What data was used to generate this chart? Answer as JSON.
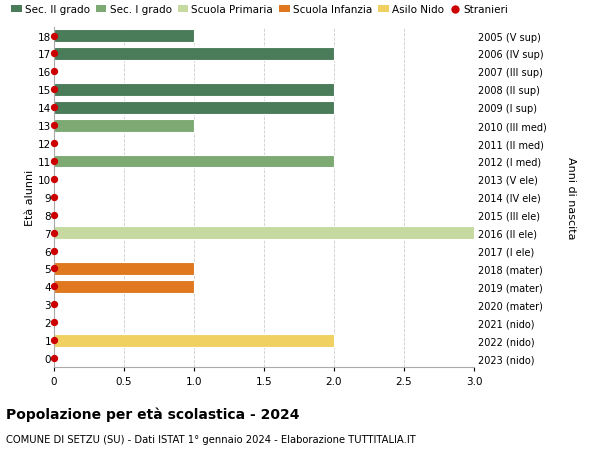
{
  "ages": [
    18,
    17,
    16,
    15,
    14,
    13,
    12,
    11,
    10,
    9,
    8,
    7,
    6,
    5,
    4,
    3,
    2,
    1,
    0
  ],
  "right_labels": [
    "2005 (V sup)",
    "2006 (IV sup)",
    "2007 (III sup)",
    "2008 (II sup)",
    "2009 (I sup)",
    "2010 (III med)",
    "2011 (II med)",
    "2012 (I med)",
    "2013 (V ele)",
    "2014 (IV ele)",
    "2015 (III ele)",
    "2016 (II ele)",
    "2017 (I ele)",
    "2018 (mater)",
    "2019 (mater)",
    "2020 (mater)",
    "2021 (nido)",
    "2022 (nido)",
    "2023 (nido)"
  ],
  "bars": [
    {
      "age": 18,
      "value": 1.0,
      "color": "#4a7c59"
    },
    {
      "age": 17,
      "value": 2.0,
      "color": "#4a7c59"
    },
    {
      "age": 16,
      "value": 0.0,
      "color": "#4a7c59"
    },
    {
      "age": 15,
      "value": 2.0,
      "color": "#4a7c59"
    },
    {
      "age": 14,
      "value": 2.0,
      "color": "#4a7c59"
    },
    {
      "age": 13,
      "value": 1.0,
      "color": "#7daa72"
    },
    {
      "age": 12,
      "value": 0.0,
      "color": "#7daa72"
    },
    {
      "age": 11,
      "value": 2.0,
      "color": "#7daa72"
    },
    {
      "age": 10,
      "value": 0.0,
      "color": "#c5d9a0"
    },
    {
      "age": 9,
      "value": 0.0,
      "color": "#c5d9a0"
    },
    {
      "age": 8,
      "value": 0.0,
      "color": "#c5d9a0"
    },
    {
      "age": 7,
      "value": 3.0,
      "color": "#c5d9a0"
    },
    {
      "age": 6,
      "value": 0.0,
      "color": "#c5d9a0"
    },
    {
      "age": 5,
      "value": 1.0,
      "color": "#e07820"
    },
    {
      "age": 4,
      "value": 1.0,
      "color": "#e07820"
    },
    {
      "age": 3,
      "value": 0.0,
      "color": "#e07820"
    },
    {
      "age": 2,
      "value": 0.0,
      "color": "#f0d060"
    },
    {
      "age": 1,
      "value": 2.0,
      "color": "#f0d060"
    },
    {
      "age": 0,
      "value": 0.0,
      "color": "#f0d060"
    }
  ],
  "stranieri_ages": [
    18,
    17,
    16,
    15,
    14,
    13,
    12,
    11,
    10,
    9,
    8,
    7,
    6,
    5,
    4,
    3,
    2,
    1,
    0
  ],
  "dot_color": "#cc0000",
  "dot_size": 18,
  "xlim": [
    0,
    3.0
  ],
  "xticks": [
    0,
    0.5,
    1.0,
    1.5,
    2.0,
    2.5,
    3.0
  ],
  "xlabel_left": "Età alunni",
  "xlabel_right": "Anni di nascita",
  "title": "Popolazione per età scolastica - 2024",
  "subtitle": "COMUNE DI SETZU (SU) - Dati ISTAT 1° gennaio 2024 - Elaborazione TUTTITALIA.IT",
  "legend_items": [
    {
      "label": "Sec. II grado",
      "color": "#4a7c59",
      "type": "patch"
    },
    {
      "label": "Sec. I grado",
      "color": "#7daa72",
      "type": "patch"
    },
    {
      "label": "Scuola Primaria",
      "color": "#c5d9a0",
      "type": "patch"
    },
    {
      "label": "Scuola Infanzia",
      "color": "#e07820",
      "type": "patch"
    },
    {
      "label": "Asilo Nido",
      "color": "#f0d060",
      "type": "patch"
    },
    {
      "label": "Stranieri",
      "color": "#cc0000",
      "type": "circle"
    }
  ],
  "bar_height": 0.72,
  "grid_color": "#cccccc",
  "bg_color": "#ffffff",
  "plot_bg": "#ffffff"
}
